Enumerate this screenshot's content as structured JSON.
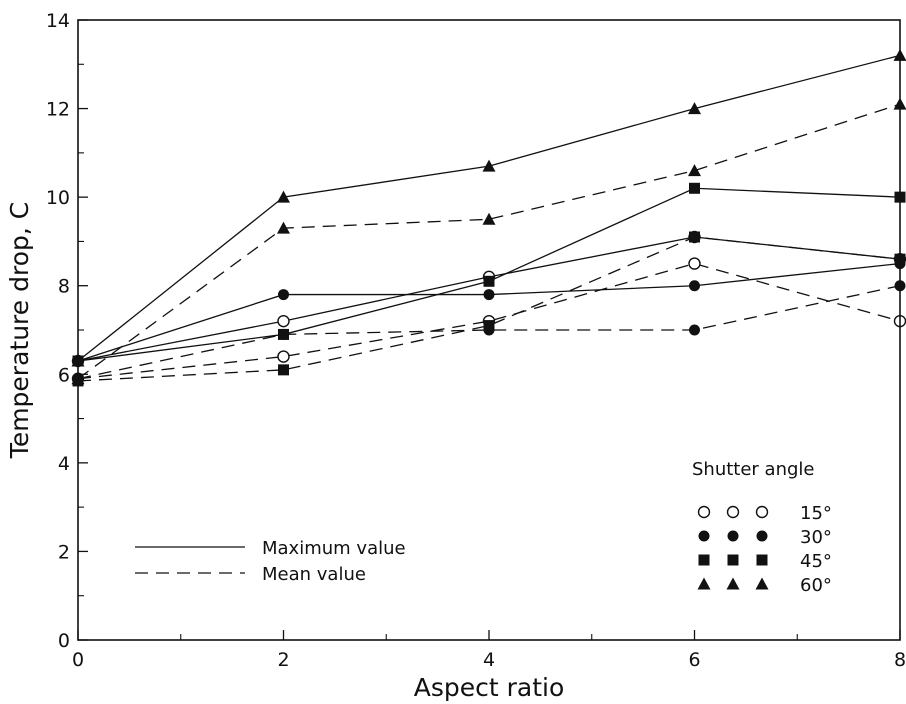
{
  "chart_data": {
    "type": "line",
    "title": "",
    "xlabel": "Aspect ratio",
    "ylabel": "Temperature drop, C",
    "xlim": [
      0,
      8
    ],
    "ylim": [
      0,
      14
    ],
    "x_ticks": [
      "0",
      "2",
      "4",
      "6",
      "8"
    ],
    "y_ticks": [
      "0",
      "2",
      "4",
      "6",
      "8",
      "10",
      "12",
      "14"
    ],
    "grid": false,
    "x": [
      0,
      2,
      4,
      6,
      8
    ],
    "line_style_legend": {
      "placement": "lower-left",
      "entries": [
        {
          "label": "Maximum value",
          "style": "solid"
        },
        {
          "label": "Mean value",
          "style": "dashed"
        }
      ]
    },
    "marker_legend": {
      "placement": "lower-right",
      "title": "Shutter angle",
      "entries": [
        {
          "marker": "open-circle",
          "label": "15°"
        },
        {
          "marker": "filled-circle",
          "label": "30°"
        },
        {
          "marker": "filled-square",
          "label": "45°"
        },
        {
          "marker": "filled-triangle",
          "label": "60°"
        }
      ]
    },
    "series": [
      {
        "shutter_angle": "15°",
        "marker": "open-circle",
        "style": "solid",
        "values": [
          6.3,
          7.2,
          8.2,
          9.1,
          8.6
        ]
      },
      {
        "shutter_angle": "15°",
        "marker": "open-circle",
        "style": "dashed",
        "values": [
          5.9,
          6.4,
          7.2,
          8.5,
          7.2
        ]
      },
      {
        "shutter_angle": "30°",
        "marker": "filled-circle",
        "style": "solid",
        "values": [
          6.3,
          7.8,
          7.8,
          8.0,
          8.5
        ]
      },
      {
        "shutter_angle": "30°",
        "marker": "filled-circle",
        "style": "dashed",
        "values": [
          5.9,
          6.9,
          7.0,
          7.0,
          8.0
        ]
      },
      {
        "shutter_angle": "45°",
        "marker": "filled-square",
        "style": "solid",
        "values": [
          6.3,
          6.9,
          8.1,
          10.2,
          10.0
        ]
      },
      {
        "shutter_angle": "45°",
        "marker": "filled-square",
        "style": "dashed",
        "values": [
          5.85,
          6.1,
          7.1,
          9.1,
          8.6
        ]
      },
      {
        "shutter_angle": "60°",
        "marker": "filled-triangle",
        "style": "solid",
        "values": [
          6.3,
          10.0,
          10.7,
          12.0,
          13.2
        ]
      },
      {
        "shutter_angle": "60°",
        "marker": "filled-triangle",
        "style": "dashed",
        "values": [
          5.9,
          9.3,
          9.5,
          10.6,
          12.1
        ]
      }
    ],
    "colors": {
      "ink": "#111111",
      "background": "#ffffff"
    }
  }
}
